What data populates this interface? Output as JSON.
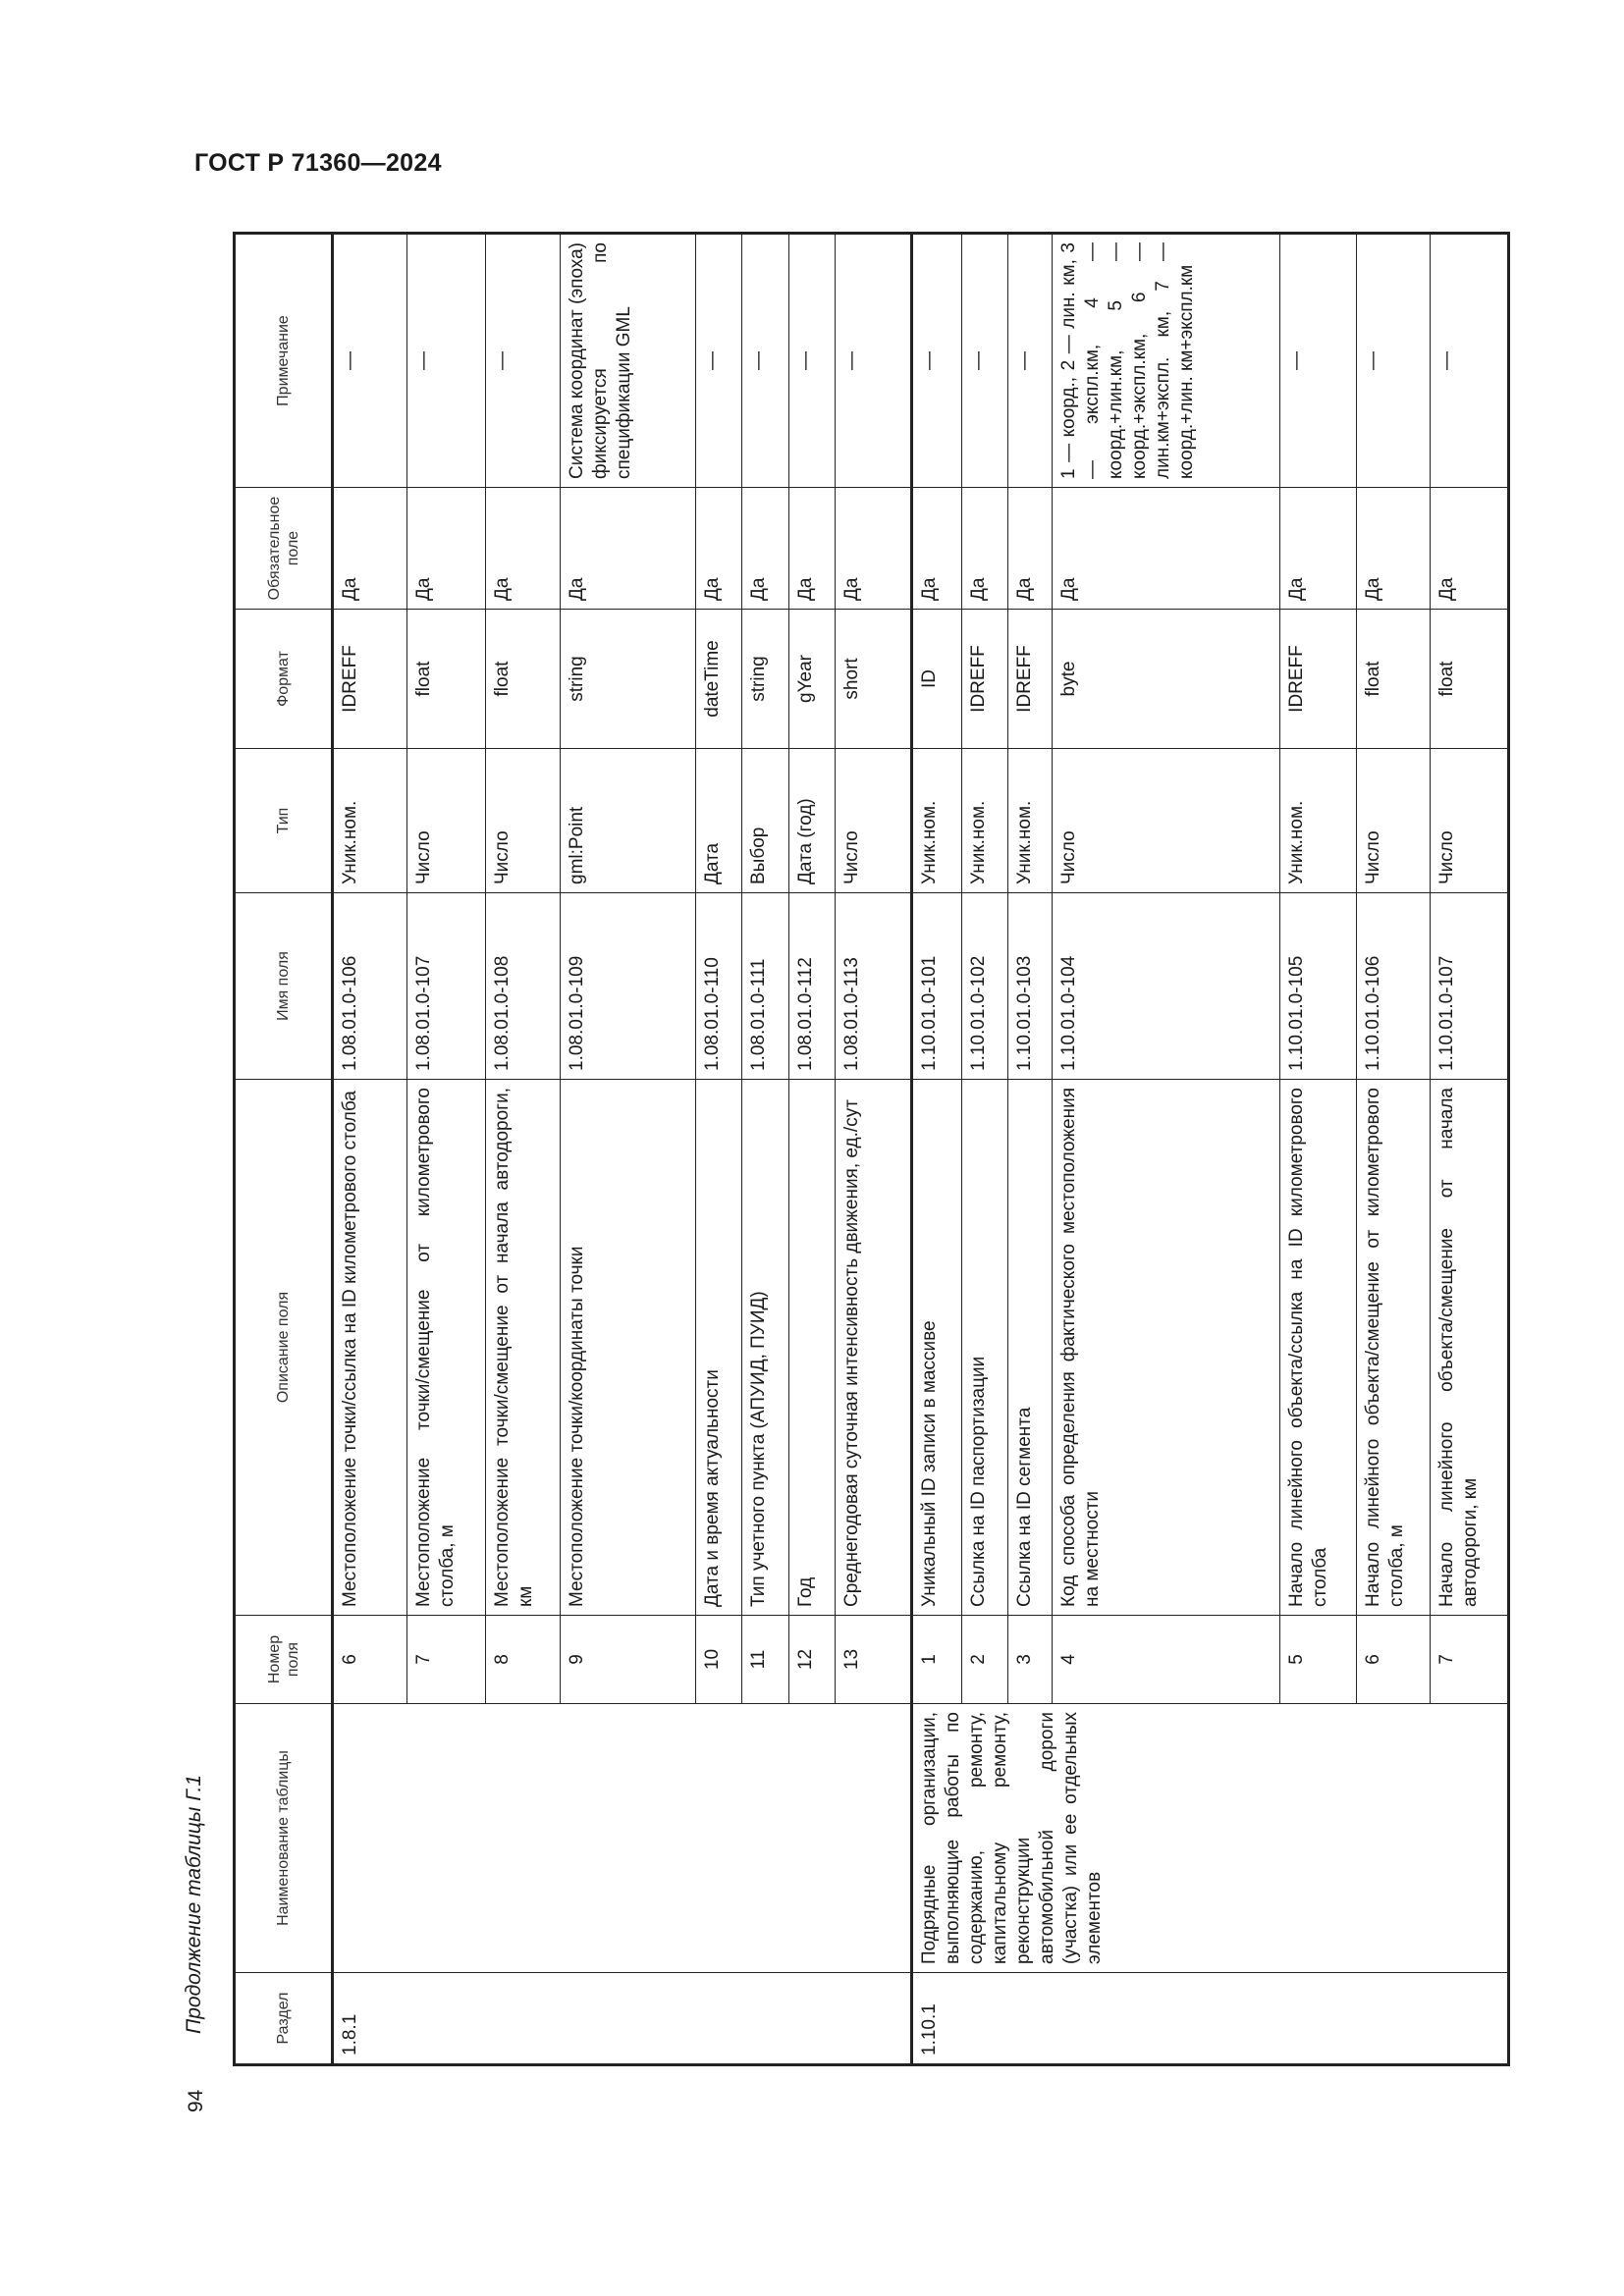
{
  "header": {
    "title": "ГОСТ Р 71360—2024"
  },
  "caption": "Продолжение таблицы Г.1",
  "page_number": "94",
  "table": {
    "columns": [
      "Раздел",
      "Наименование таблицы",
      "Номер поля",
      "Описание поля",
      "Имя поля",
      "Тип",
      "Формат",
      "Обязательное поле",
      "Примечание"
    ],
    "sections": [
      {
        "section": "1.8.1",
        "table_name": "",
        "rows": [
          {
            "num": "6",
            "desc": "Местоположение точки/ссылка на ID километрового столба",
            "field": "1.08.01.0-106",
            "type": "Уник.ном.",
            "format": "IDREFF",
            "required": "Да",
            "note": "—"
          },
          {
            "num": "7",
            "desc": "Местоположение точки/смещение от километрового столба, м",
            "field": "1.08.01.0-107",
            "type": "Число",
            "format": "float",
            "required": "Да",
            "note": "—"
          },
          {
            "num": "8",
            "desc": "Местоположение точки/смещение от начала автодороги, км",
            "field": "1.08.01.0-108",
            "type": "Число",
            "format": "float",
            "required": "Да",
            "note": "—"
          },
          {
            "num": "9",
            "desc": "Местоположение точки/координаты точки",
            "field": "1.08.01.0-109",
            "type": "gml:Point",
            "format": "string",
            "required": "Да",
            "note": "Система координат (эпоха) фиксируется по спецификации GML"
          },
          {
            "num": "10",
            "desc": "Дата и время актуальности",
            "field": "1.08.01.0-110",
            "type": "Дата",
            "format": "dateTime",
            "required": "Да",
            "note": "—"
          },
          {
            "num": "11",
            "desc": "Тип учетного пункта (АПУИД, ПУИД)",
            "field": "1.08.01.0-111",
            "type": "Выбор",
            "format": "string",
            "required": "Да",
            "note": "—"
          },
          {
            "num": "12",
            "desc": "Год",
            "field": "1.08.01.0-112",
            "type": "Дата (год)",
            "format": "gYear",
            "required": "Да",
            "note": "—"
          },
          {
            "num": "13",
            "desc": "Среднегодовая суточная интенсивность движения, ед./сут",
            "field": "1.08.01.0-113",
            "type": "Число",
            "format": "short",
            "required": "Да",
            "note": "—"
          }
        ]
      },
      {
        "section": "1.10.1",
        "table_name": "Подрядные организации, выполняющие работы по содержанию, ремонту, капитальному ремонту, реконструкции автомобильной дороги (участка) или ее отдельных элементов",
        "rows": [
          {
            "num": "1",
            "desc": "Уникальный ID записи в массиве",
            "field": "1.10.01.0-101",
            "type": "Уник.ном.",
            "format": "ID",
            "required": "Да",
            "note": "—"
          },
          {
            "num": "2",
            "desc": "Ссылка на ID паспортизации",
            "field": "1.10.01.0-102",
            "type": "Уник.ном.",
            "format": "IDREFF",
            "required": "Да",
            "note": "—"
          },
          {
            "num": "3",
            "desc": "Ссылка на ID сегмента",
            "field": "1.10.01.0-103",
            "type": "Уник.ном.",
            "format": "IDREFF",
            "required": "Да",
            "note": "—"
          },
          {
            "num": "4",
            "desc": "Код способа определения фактического местоположения на местности",
            "field": "1.10.01.0-104",
            "type": "Число",
            "format": "byte",
            "required": "Да",
            "note": "1 — коорд., 2 — лин. км, 3 — экспл.км, 4 — коорд.+лин.км, 5 — коорд.+экспл.км, 6 — лин.км+экспл. км, 7 — коорд.+лин. км+экспл.км"
          },
          {
            "num": "5",
            "desc": "Начало линейного объекта/ссылка на ID километрового столба",
            "field": "1.10.01.0-105",
            "type": "Уник.ном.",
            "format": "IDREFF",
            "required": "Да",
            "note": "—"
          },
          {
            "num": "6",
            "desc": "Начало линейного объекта/смещение от километрового столба, м",
            "field": "1.10.01.0-106",
            "type": "Число",
            "format": "float",
            "required": "Да",
            "note": "—"
          },
          {
            "num": "7",
            "desc": "Начало линейного объекта/смещение от начала автодороги, км",
            "field": "1.10.01.0-107",
            "type": "Число",
            "format": "float",
            "required": "Да",
            "note": "—"
          }
        ]
      }
    ]
  }
}
